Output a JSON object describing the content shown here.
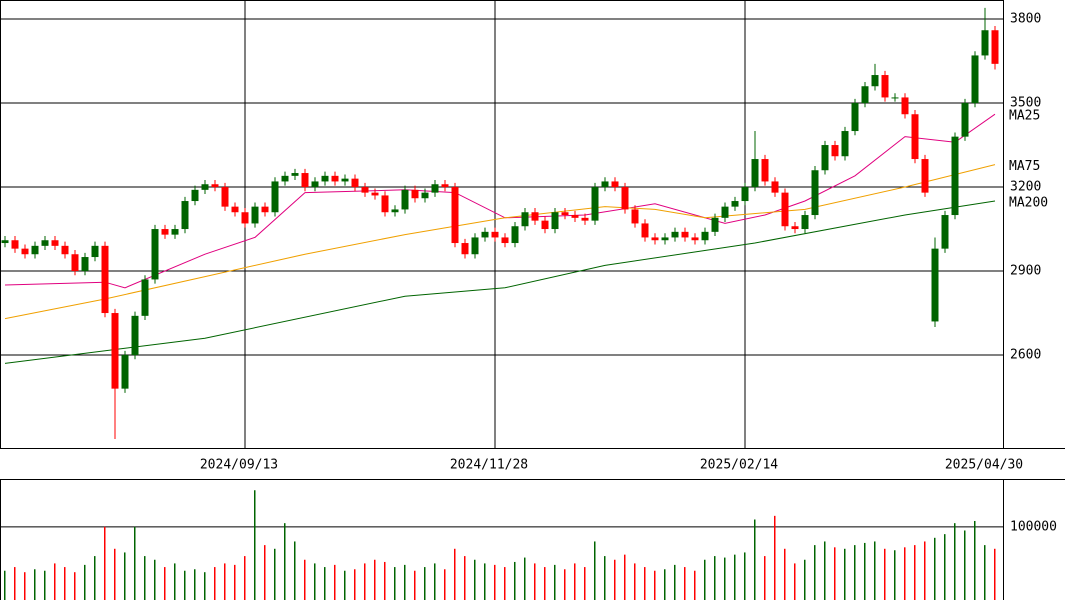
{
  "chart_data": [
    {
      "type": "candlestick",
      "up_color": "#006400",
      "down_color": "#ff0000",
      "xlim": [
        -0.5,
        99.8
      ],
      "xticks": [
        {
          "value": 24,
          "label": "2024/09/13"
        },
        {
          "value": 49,
          "label": "2024/11/28"
        },
        {
          "value": 74,
          "label": "2025/02/14"
        },
        {
          "value": 98.5,
          "label": "2025/04/30"
        }
      ],
      "ylim": [
        2268,
        3868
      ],
      "yticks": [
        2600,
        2900,
        3200,
        3500,
        3800
      ],
      "grid": true,
      "open": [
        3000,
        3010,
        2980,
        2960,
        2990,
        3010,
        2990,
        2960,
        2900,
        2950,
        2990,
        2750,
        2480,
        2600,
        2740,
        2870,
        3050,
        3030,
        3050,
        3150,
        3190,
        3210,
        3200,
        3130,
        3110,
        3070,
        3130,
        3110,
        3220,
        3240,
        3250,
        3200,
        3220,
        3240,
        3220,
        3230,
        3200,
        3180,
        3170,
        3110,
        3120,
        3190,
        3160,
        3180,
        3210,
        3200,
        3000,
        2960,
        3020,
        3040,
        3020,
        3000,
        3060,
        3110,
        3080,
        3050,
        3110,
        3100,
        3090,
        3080,
        3200,
        3220,
        3200,
        3120,
        3070,
        3020,
        3010,
        3020,
        3040,
        3020,
        3010,
        3040,
        3090,
        3130,
        3150,
        3200,
        3300,
        3220,
        3180,
        3060,
        3050,
        3100,
        3260,
        3350,
        3310,
        3400,
        3500,
        3560,
        3600,
        3520,
        3520,
        3460,
        3300,
        2720,
        2980,
        3100,
        3380,
        3500,
        3670,
        3760
      ],
      "high": [
        3025,
        3025,
        2995,
        3005,
        3025,
        3025,
        3005,
        2975,
        2965,
        3005,
        3005,
        2765,
        2615,
        2755,
        2885,
        3065,
        3065,
        3065,
        3165,
        3205,
        3225,
        3225,
        3215,
        3145,
        3125,
        3145,
        3145,
        3235,
        3255,
        3265,
        3265,
        3235,
        3255,
        3255,
        3245,
        3245,
        3215,
        3195,
        3185,
        3135,
        3205,
        3205,
        3195,
        3225,
        3225,
        3215,
        3015,
        3035,
        3055,
        3055,
        3035,
        3075,
        3125,
        3125,
        3095,
        3125,
        3125,
        3115,
        3105,
        3215,
        3235,
        3235,
        3215,
        3135,
        3085,
        3035,
        3035,
        3055,
        3055,
        3035,
        3055,
        3105,
        3145,
        3165,
        3215,
        3400,
        3315,
        3235,
        3195,
        3075,
        3115,
        3275,
        3365,
        3365,
        3415,
        3515,
        3575,
        3640,
        3615,
        3535,
        3535,
        3475,
        3315,
        3020,
        3115,
        3395,
        3515,
        3685,
        3840,
        3775
      ],
      "low": [
        2985,
        2965,
        2945,
        2945,
        2975,
        2975,
        2945,
        2885,
        2885,
        2935,
        2735,
        2300,
        2465,
        2585,
        2725,
        2855,
        3015,
        3015,
        3035,
        3135,
        3175,
        3185,
        3115,
        3095,
        3055,
        3055,
        3095,
        3095,
        3205,
        3225,
        3185,
        3185,
        3205,
        3205,
        3205,
        3185,
        3165,
        3155,
        3095,
        3095,
        3105,
        3145,
        3145,
        3165,
        3185,
        2985,
        2945,
        2945,
        3005,
        3005,
        2985,
        2985,
        3045,
        3065,
        3035,
        3035,
        3085,
        3075,
        3065,
        3065,
        3185,
        3185,
        3105,
        3055,
        3005,
        2995,
        2995,
        3005,
        3005,
        2995,
        2995,
        3025,
        3075,
        3115,
        3135,
        3185,
        3205,
        3165,
        3045,
        3035,
        3035,
        3085,
        3245,
        3295,
        3295,
        3385,
        3485,
        3545,
        3505,
        3505,
        3445,
        3285,
        3165,
        2700,
        2965,
        3085,
        3365,
        3485,
        3655,
        3620
      ],
      "close": [
        3010,
        2980,
        2960,
        2990,
        3010,
        2990,
        2960,
        2900,
        2950,
        2990,
        2750,
        2480,
        2600,
        2740,
        2870,
        3050,
        3030,
        3050,
        3150,
        3190,
        3210,
        3200,
        3130,
        3110,
        3070,
        3130,
        3110,
        3220,
        3240,
        3250,
        3200,
        3220,
        3240,
        3220,
        3230,
        3200,
        3180,
        3170,
        3110,
        3120,
        3190,
        3160,
        3180,
        3210,
        3200,
        3000,
        2960,
        3020,
        3040,
        3020,
        3000,
        3060,
        3110,
        3080,
        3050,
        3110,
        3100,
        3090,
        3080,
        3200,
        3220,
        3200,
        3120,
        3070,
        3020,
        3010,
        3020,
        3040,
        3020,
        3010,
        3040,
        3090,
        3130,
        3150,
        3200,
        3300,
        3220,
        3180,
        3060,
        3050,
        3100,
        3260,
        3350,
        3310,
        3400,
        3500,
        3560,
        3600,
        3520,
        3520,
        3460,
        3300,
        3180,
        2980,
        3100,
        3380,
        3500,
        3670,
        3760,
        3640
      ],
      "series": [
        {
          "name": "MA25",
          "color": "#e0007f",
          "x": [
            0,
            10,
            12,
            20,
            25,
            30,
            40,
            45,
            50,
            58,
            65,
            72,
            76,
            80,
            85,
            90,
            95,
            99
          ],
          "values": [
            2850,
            2860,
            2840,
            2960,
            3020,
            3180,
            3190,
            3180,
            3090,
            3100,
            3140,
            3070,
            3100,
            3150,
            3240,
            3380,
            3360,
            3460
          ]
        },
        {
          "name": "MA75",
          "color": "#f0a000",
          "x": [
            0,
            10,
            20,
            30,
            40,
            50,
            60,
            65,
            70,
            80,
            90,
            99
          ],
          "values": [
            2730,
            2800,
            2880,
            2960,
            3030,
            3090,
            3130,
            3120,
            3090,
            3120,
            3200,
            3280
          ]
        },
        {
          "name": "MA200",
          "color": "#006400",
          "x": [
            0,
            20,
            40,
            50,
            60,
            75,
            90,
            99
          ],
          "values": [
            2570,
            2660,
            2810,
            2840,
            2920,
            3000,
            3100,
            3150
          ]
        }
      ]
    },
    {
      "type": "bar",
      "xlim": [
        -0.5,
        99.8
      ],
      "ylim": [
        0,
        164000
      ],
      "yticks": [
        100000
      ],
      "grid": true,
      "values": [
        40000,
        45000,
        38000,
        42000,
        40000,
        50000,
        45000,
        38000,
        48000,
        60000,
        100000,
        70000,
        65000,
        100000,
        60000,
        55000,
        45000,
        50000,
        40000,
        42000,
        38000,
        45000,
        50000,
        48000,
        60000,
        150000,
        75000,
        70000,
        105000,
        80000,
        55000,
        50000,
        45000,
        48000,
        40000,
        42000,
        50000,
        55000,
        52000,
        45000,
        48000,
        40000,
        45000,
        50000,
        42000,
        70000,
        60000,
        55000,
        50000,
        48000,
        45000,
        52000,
        58000,
        50000,
        45000,
        48000,
        42000,
        50000,
        45000,
        80000,
        60000,
        55000,
        62000,
        50000,
        45000,
        40000,
        42000,
        48000,
        45000,
        40000,
        55000,
        60000,
        58000,
        62000,
        65000,
        110000,
        60000,
        115000,
        70000,
        50000,
        55000,
        75000,
        80000,
        72000,
        70000,
        75000,
        78000,
        80000,
        70000,
        68000,
        72000,
        75000,
        80000,
        85000,
        90000,
        105000,
        95000,
        108000,
        75000,
        70000
      ]
    }
  ]
}
